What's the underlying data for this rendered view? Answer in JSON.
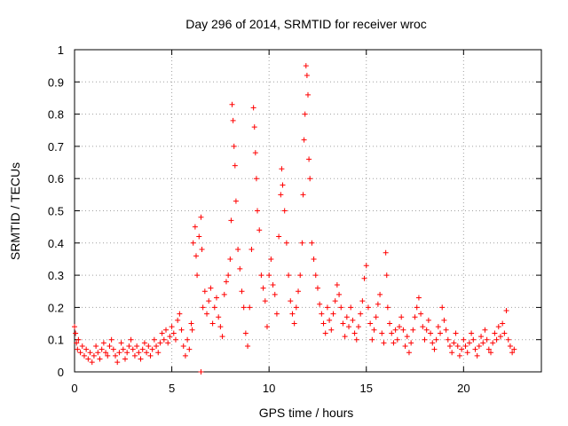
{
  "chart_data": {
    "type": "scatter",
    "title": "Day 296 of 2014, SRMTID for receiver wroc",
    "xlabel": "GPS time / hours",
    "ylabel": "SRMTID / TECUs",
    "xlim": [
      0,
      24
    ],
    "ylim": [
      0,
      1
    ],
    "grid": true,
    "marker": "+",
    "color": "#ff0000",
    "xticks": [
      {
        "value": 0,
        "label": "0"
      },
      {
        "value": 5,
        "label": "5"
      },
      {
        "value": 10,
        "label": "10"
      },
      {
        "value": 15,
        "label": "15"
      },
      {
        "value": 20,
        "label": "20"
      }
    ],
    "yticks": [
      {
        "value": 0,
        "label": "0"
      },
      {
        "value": 0.1,
        "label": "0.1"
      },
      {
        "value": 0.2,
        "label": "0.2"
      },
      {
        "value": 0.3,
        "label": "0.3"
      },
      {
        "value": 0.4,
        "label": "0.4"
      },
      {
        "value": 0.5,
        "label": "0.5"
      },
      {
        "value": 0.6,
        "label": "0.6"
      },
      {
        "value": 0.7,
        "label": "0.7"
      },
      {
        "value": 0.8,
        "label": "0.8"
      },
      {
        "value": 0.9,
        "label": "0.9"
      },
      {
        "value": 1,
        "label": "1"
      }
    ],
    "points": [
      [
        0.0,
        0.14
      ],
      [
        0.05,
        0.12
      ],
      [
        0.1,
        0.09
      ],
      [
        0.15,
        0.07
      ],
      [
        0.2,
        0.1
      ],
      [
        0.3,
        0.06
      ],
      [
        0.4,
        0.08
      ],
      [
        0.5,
        0.05
      ],
      [
        0.6,
        0.07
      ],
      [
        0.7,
        0.04
      ],
      [
        0.8,
        0.06
      ],
      [
        0.9,
        0.03
      ],
      [
        1.0,
        0.05
      ],
      [
        1.1,
        0.08
      ],
      [
        1.2,
        0.06
      ],
      [
        1.3,
        0.04
      ],
      [
        1.4,
        0.07
      ],
      [
        1.5,
        0.09
      ],
      [
        1.6,
        0.06
      ],
      [
        1.7,
        0.05
      ],
      [
        1.8,
        0.08
      ],
      [
        1.9,
        0.1
      ],
      [
        2.0,
        0.07
      ],
      [
        2.1,
        0.05
      ],
      [
        2.2,
        0.03
      ],
      [
        2.3,
        0.06
      ],
      [
        2.4,
        0.09
      ],
      [
        2.5,
        0.07
      ],
      [
        2.6,
        0.04
      ],
      [
        2.7,
        0.06
      ],
      [
        2.8,
        0.08
      ],
      [
        2.9,
        0.1
      ],
      [
        3.0,
        0.07
      ],
      [
        3.1,
        0.05
      ],
      [
        3.2,
        0.08
      ],
      [
        3.3,
        0.06
      ],
      [
        3.4,
        0.04
      ],
      [
        3.5,
        0.07
      ],
      [
        3.6,
        0.09
      ],
      [
        3.7,
        0.06
      ],
      [
        3.8,
        0.08
      ],
      [
        3.9,
        0.05
      ],
      [
        4.0,
        0.07
      ],
      [
        4.1,
        0.1
      ],
      [
        4.2,
        0.08
      ],
      [
        4.3,
        0.06
      ],
      [
        4.4,
        0.09
      ],
      [
        4.5,
        0.12
      ],
      [
        4.6,
        0.1
      ],
      [
        4.7,
        0.13
      ],
      [
        4.8,
        0.09
      ],
      [
        4.9,
        0.11
      ],
      [
        5.0,
        0.14
      ],
      [
        5.1,
        0.12
      ],
      [
        5.2,
        0.1
      ],
      [
        5.3,
        0.16
      ],
      [
        5.4,
        0.18
      ],
      [
        5.5,
        0.13
      ],
      [
        5.6,
        0.08
      ],
      [
        5.7,
        0.05
      ],
      [
        5.8,
        0.1
      ],
      [
        5.9,
        0.07
      ],
      [
        6.0,
        0.15
      ],
      [
        6.05,
        0.13
      ],
      [
        6.1,
        0.4
      ],
      [
        6.2,
        0.45
      ],
      [
        6.25,
        0.36
      ],
      [
        6.3,
        0.3
      ],
      [
        6.4,
        0.42
      ],
      [
        6.5,
        0.48
      ],
      [
        6.55,
        0.38
      ],
      [
        6.6,
        0.2
      ],
      [
        6.7,
        0.25
      ],
      [
        6.8,
        0.18
      ],
      [
        6.9,
        0.22
      ],
      [
        7.0,
        0.26
      ],
      [
        7.1,
        0.15
      ],
      [
        7.2,
        0.2
      ],
      [
        7.3,
        0.23
      ],
      [
        7.4,
        0.17
      ],
      [
        7.5,
        0.14
      ],
      [
        7.6,
        0.11
      ],
      [
        7.7,
        0.24
      ],
      [
        7.8,
        0.28
      ],
      [
        7.9,
        0.3
      ],
      [
        8.0,
        0.35
      ],
      [
        8.05,
        0.47
      ],
      [
        8.1,
        0.83
      ],
      [
        8.15,
        0.78
      ],
      [
        8.2,
        0.7
      ],
      [
        8.25,
        0.64
      ],
      [
        8.3,
        0.53
      ],
      [
        8.4,
        0.38
      ],
      [
        8.5,
        0.32
      ],
      [
        8.6,
        0.25
      ],
      [
        8.7,
        0.2
      ],
      [
        8.8,
        0.12
      ],
      [
        8.9,
        0.08
      ],
      [
        9.0,
        0.2
      ],
      [
        9.1,
        0.38
      ],
      [
        9.2,
        0.82
      ],
      [
        9.25,
        0.76
      ],
      [
        9.3,
        0.68
      ],
      [
        9.35,
        0.6
      ],
      [
        9.4,
        0.5
      ],
      [
        9.5,
        0.44
      ],
      [
        9.6,
        0.3
      ],
      [
        9.7,
        0.26
      ],
      [
        9.8,
        0.22
      ],
      [
        9.9,
        0.14
      ],
      [
        10.0,
        0.3
      ],
      [
        10.1,
        0.35
      ],
      [
        10.2,
        0.27
      ],
      [
        10.3,
        0.24
      ],
      [
        10.4,
        0.18
      ],
      [
        10.5,
        0.42
      ],
      [
        10.6,
        0.55
      ],
      [
        10.65,
        0.63
      ],
      [
        10.7,
        0.58
      ],
      [
        10.8,
        0.5
      ],
      [
        10.9,
        0.4
      ],
      [
        11.0,
        0.3
      ],
      [
        11.1,
        0.22
      ],
      [
        11.2,
        0.18
      ],
      [
        11.3,
        0.15
      ],
      [
        11.4,
        0.2
      ],
      [
        11.5,
        0.25
      ],
      [
        11.6,
        0.3
      ],
      [
        11.7,
        0.4
      ],
      [
        11.75,
        0.55
      ],
      [
        11.8,
        0.72
      ],
      [
        11.85,
        0.8
      ],
      [
        11.9,
        0.95
      ],
      [
        11.95,
        0.92
      ],
      [
        12.0,
        0.86
      ],
      [
        12.05,
        0.66
      ],
      [
        12.1,
        0.6
      ],
      [
        12.2,
        0.4
      ],
      [
        12.3,
        0.35
      ],
      [
        12.4,
        0.3
      ],
      [
        12.5,
        0.26
      ],
      [
        12.6,
        0.21
      ],
      [
        12.7,
        0.18
      ],
      [
        12.8,
        0.15
      ],
      [
        12.9,
        0.12
      ],
      [
        13.0,
        0.2
      ],
      [
        13.1,
        0.16
      ],
      [
        13.2,
        0.13
      ],
      [
        13.3,
        0.18
      ],
      [
        13.4,
        0.22
      ],
      [
        13.5,
        0.27
      ],
      [
        13.6,
        0.24
      ],
      [
        13.7,
        0.2
      ],
      [
        13.8,
        0.15
      ],
      [
        13.9,
        0.11
      ],
      [
        14.0,
        0.17
      ],
      [
        14.1,
        0.14
      ],
      [
        14.2,
        0.2
      ],
      [
        14.3,
        0.16
      ],
      [
        14.4,
        0.12
      ],
      [
        14.5,
        0.1
      ],
      [
        14.6,
        0.14
      ],
      [
        14.7,
        0.18
      ],
      [
        14.8,
        0.22
      ],
      [
        14.9,
        0.29
      ],
      [
        15.0,
        0.33
      ],
      [
        15.1,
        0.2
      ],
      [
        15.2,
        0.15
      ],
      [
        15.3,
        0.1
      ],
      [
        15.4,
        0.13
      ],
      [
        15.5,
        0.17
      ],
      [
        15.6,
        0.21
      ],
      [
        15.7,
        0.24
      ],
      [
        15.8,
        0.12
      ],
      [
        15.9,
        0.09
      ],
      [
        16.0,
        0.37
      ],
      [
        16.05,
        0.3
      ],
      [
        16.1,
        0.2
      ],
      [
        16.2,
        0.15
      ],
      [
        16.3,
        0.12
      ],
      [
        16.4,
        0.09
      ],
      [
        16.5,
        0.13
      ],
      [
        16.6,
        0.1
      ],
      [
        16.7,
        0.14
      ],
      [
        16.8,
        0.17
      ],
      [
        16.9,
        0.13
      ],
      [
        17.0,
        0.08
      ],
      [
        17.1,
        0.11
      ],
      [
        17.2,
        0.06
      ],
      [
        17.3,
        0.09
      ],
      [
        17.4,
        0.13
      ],
      [
        17.5,
        0.17
      ],
      [
        17.6,
        0.2
      ],
      [
        17.7,
        0.23
      ],
      [
        17.8,
        0.18
      ],
      [
        17.9,
        0.14
      ],
      [
        18.0,
        0.1
      ],
      [
        18.1,
        0.13
      ],
      [
        18.2,
        0.16
      ],
      [
        18.3,
        0.12
      ],
      [
        18.4,
        0.09
      ],
      [
        18.5,
        0.07
      ],
      [
        18.6,
        0.1
      ],
      [
        18.7,
        0.14
      ],
      [
        18.8,
        0.12
      ],
      [
        18.9,
        0.2
      ],
      [
        19.0,
        0.16
      ],
      [
        19.1,
        0.13
      ],
      [
        19.2,
        0.1
      ],
      [
        19.3,
        0.08
      ],
      [
        19.4,
        0.06
      ],
      [
        19.5,
        0.09
      ],
      [
        19.6,
        0.12
      ],
      [
        19.7,
        0.08
      ],
      [
        19.8,
        0.05
      ],
      [
        19.9,
        0.07
      ],
      [
        20.0,
        0.1
      ],
      [
        20.1,
        0.08
      ],
      [
        20.2,
        0.06
      ],
      [
        20.3,
        0.09
      ],
      [
        20.4,
        0.12
      ],
      [
        20.5,
        0.1
      ],
      [
        20.6,
        0.07
      ],
      [
        20.7,
        0.05
      ],
      [
        20.8,
        0.08
      ],
      [
        20.9,
        0.11
      ],
      [
        21.0,
        0.09
      ],
      [
        21.1,
        0.13
      ],
      [
        21.2,
        0.1
      ],
      [
        21.3,
        0.07
      ],
      [
        21.4,
        0.06
      ],
      [
        21.5,
        0.09
      ],
      [
        21.6,
        0.12
      ],
      [
        21.7,
        0.1
      ],
      [
        21.8,
        0.14
      ],
      [
        21.9,
        0.11
      ],
      [
        22.0,
        0.15
      ],
      [
        22.1,
        0.12
      ],
      [
        22.2,
        0.19
      ],
      [
        22.3,
        0.1
      ],
      [
        22.4,
        0.08
      ],
      [
        22.5,
        0.06
      ],
      [
        22.6,
        0.07
      ],
      [
        6.5,
        0.0
      ]
    ]
  }
}
